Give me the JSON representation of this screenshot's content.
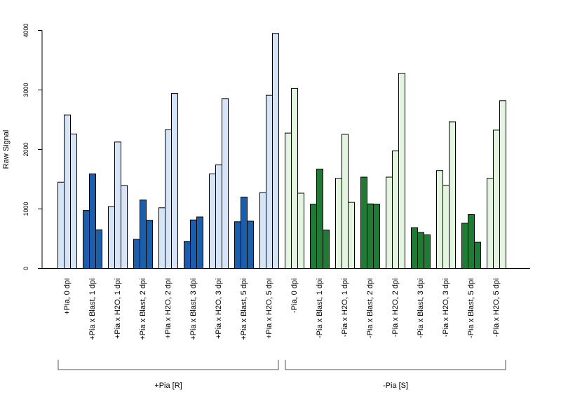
{
  "chart_data": {
    "type": "bar",
    "ylabel": "Raw Signal",
    "ylim": [
      0,
      4000
    ],
    "yticks": [
      0,
      1000,
      2000,
      3000,
      4000
    ],
    "bars_per_category": 3,
    "categories": [
      {
        "label": "+Pia, 0 dpi",
        "values": [
          1450,
          2580,
          2260
        ],
        "color": "#d6e4f7"
      },
      {
        "label": "+Pia x Blast, 1 dpi",
        "values": [
          975,
          1590,
          650
        ],
        "color": "#1b5eab"
      },
      {
        "label": "+Pia x H2O, 1 dpi",
        "values": [
          1040,
          2125,
          1395
        ],
        "color": "#d6e4f7"
      },
      {
        "label": "+Pia x Blast, 2 dpi",
        "values": [
          490,
          1150,
          810
        ],
        "color": "#1b5eab"
      },
      {
        "label": "+Pia x H2O, 2 dpi",
        "values": [
          1020,
          2330,
          2940
        ],
        "color": "#d6e4f7"
      },
      {
        "label": "+Pia x Blast, 3 dpi",
        "values": [
          455,
          815,
          865
        ],
        "color": "#1b5eab"
      },
      {
        "label": "+Pia x H2O, 3 dpi",
        "values": [
          1590,
          1740,
          2855
        ],
        "color": "#d6e4f7"
      },
      {
        "label": "+Pia x Blast, 5 dpi",
        "values": [
          785,
          1200,
          795
        ],
        "color": "#1b5eab"
      },
      {
        "label": "+Pia x H2O, 5 dpi",
        "values": [
          1275,
          2910,
          3950
        ],
        "color": "#d6e4f7"
      },
      {
        "label": "-Pia, 0 dpi",
        "values": [
          2275,
          3025,
          1265
        ],
        "color": "#e3f5df"
      },
      {
        "label": "-Pia x Blast, 1 dpi",
        "values": [
          1080,
          1670,
          645
        ],
        "color": "#1f7a33"
      },
      {
        "label": "-Pia x H2O, 1 dpi",
        "values": [
          1515,
          2255,
          1110
        ],
        "color": "#e3f5df"
      },
      {
        "label": "-Pia x Blast, 2 dpi",
        "values": [
          1535,
          1085,
          1080
        ],
        "color": "#1f7a33"
      },
      {
        "label": "-Pia x H2O, 2 dpi",
        "values": [
          1535,
          1975,
          3280
        ],
        "color": "#e3f5df"
      },
      {
        "label": "-Pia x Blast, 3 dpi",
        "values": [
          685,
          605,
          565
        ],
        "color": "#1f7a33"
      },
      {
        "label": "-Pia x H2O, 3 dpi",
        "values": [
          1645,
          1400,
          2465
        ],
        "color": "#e3f5df"
      },
      {
        "label": "-Pia x Blast, 5 dpi",
        "values": [
          760,
          905,
          440
        ],
        "color": "#1f7a33"
      },
      {
        "label": "-Pia x H2O, 5 dpi",
        "values": [
          1515,
          2325,
          2820
        ],
        "color": "#e3f5df"
      }
    ],
    "groups": [
      {
        "label": "+Pia [R]",
        "first": 0,
        "last": 8
      },
      {
        "label": "-Pia [S]",
        "first": 9,
        "last": 17
      }
    ]
  }
}
